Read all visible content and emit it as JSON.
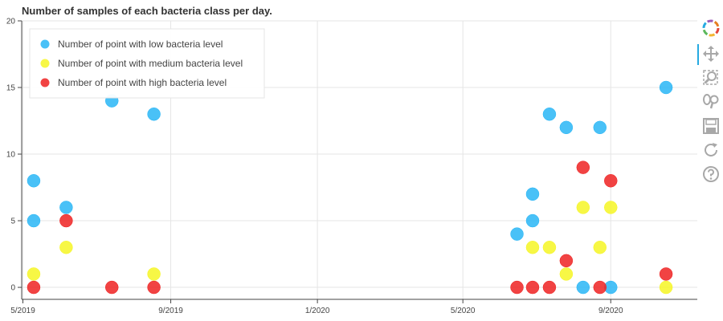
{
  "chart_data": {
    "type": "scatter",
    "title": "Number of samples of each bacteria class per day.",
    "xlabel": "",
    "ylabel": "",
    "xlim": [
      "2019-04-30",
      "2020-11-12"
    ],
    "ylim": [
      -0.9,
      20
    ],
    "x_ticks": [
      {
        "date": "2019-05-01",
        "label": "5/2019"
      },
      {
        "date": "2019-09-01",
        "label": "9/2019"
      },
      {
        "date": "2020-01-01",
        "label": "1/2020"
      },
      {
        "date": "2020-05-01",
        "label": "5/2020"
      },
      {
        "date": "2020-09-01",
        "label": "9/2020"
      }
    ],
    "y_ticks": [
      0,
      5,
      10,
      15,
      20
    ],
    "grid": true,
    "legend_position": "top-left",
    "series": [
      {
        "name": "Number of point with low bacteria level",
        "color": "#29b6f6",
        "points": [
          {
            "x": "2019-05-10",
            "y": 8
          },
          {
            "x": "2019-05-10",
            "y": 5
          },
          {
            "x": "2019-06-06",
            "y": 6
          },
          {
            "x": "2019-07-14",
            "y": 14
          },
          {
            "x": "2019-08-18",
            "y": 13
          },
          {
            "x": "2020-06-15",
            "y": 4
          },
          {
            "x": "2020-06-28",
            "y": 7
          },
          {
            "x": "2020-06-28",
            "y": 5
          },
          {
            "x": "2020-07-12",
            "y": 13
          },
          {
            "x": "2020-07-26",
            "y": 12
          },
          {
            "x": "2020-08-09",
            "y": 0
          },
          {
            "x": "2020-08-23",
            "y": 12
          },
          {
            "x": "2020-09-01",
            "y": 0
          },
          {
            "x": "2020-10-17",
            "y": 15
          }
        ]
      },
      {
        "name": "Number of point with medium bacteria level",
        "color": "#f6f624",
        "points": [
          {
            "x": "2019-05-10",
            "y": 1
          },
          {
            "x": "2019-06-06",
            "y": 3
          },
          {
            "x": "2019-08-18",
            "y": 1
          },
          {
            "x": "2020-06-28",
            "y": 3
          },
          {
            "x": "2020-07-12",
            "y": 3
          },
          {
            "x": "2020-07-26",
            "y": 1
          },
          {
            "x": "2020-08-09",
            "y": 6
          },
          {
            "x": "2020-08-23",
            "y": 3
          },
          {
            "x": "2020-09-01",
            "y": 6
          },
          {
            "x": "2020-10-17",
            "y": 0
          }
        ]
      },
      {
        "name": "Number of point with high bacteria level",
        "color": "#ee2222",
        "points": [
          {
            "x": "2019-05-10",
            "y": 0
          },
          {
            "x": "2019-06-06",
            "y": 5
          },
          {
            "x": "2019-07-14",
            "y": 0
          },
          {
            "x": "2019-08-18",
            "y": 0
          },
          {
            "x": "2020-06-15",
            "y": 0
          },
          {
            "x": "2020-06-28",
            "y": 0
          },
          {
            "x": "2020-07-12",
            "y": 0
          },
          {
            "x": "2020-07-26",
            "y": 2
          },
          {
            "x": "2020-08-09",
            "y": 9
          },
          {
            "x": "2020-08-23",
            "y": 0
          },
          {
            "x": "2020-09-01",
            "y": 8
          },
          {
            "x": "2020-10-17",
            "y": 1
          }
        ]
      }
    ]
  },
  "toolbar": {
    "tools": [
      {
        "icon": "bokeh-logo-icon"
      },
      {
        "icon": "pan-icon"
      },
      {
        "icon": "box-zoom-icon"
      },
      {
        "icon": "wheel-zoom-icon"
      },
      {
        "icon": "save-icon"
      },
      {
        "icon": "reset-icon"
      },
      {
        "icon": "help-icon"
      }
    ]
  }
}
